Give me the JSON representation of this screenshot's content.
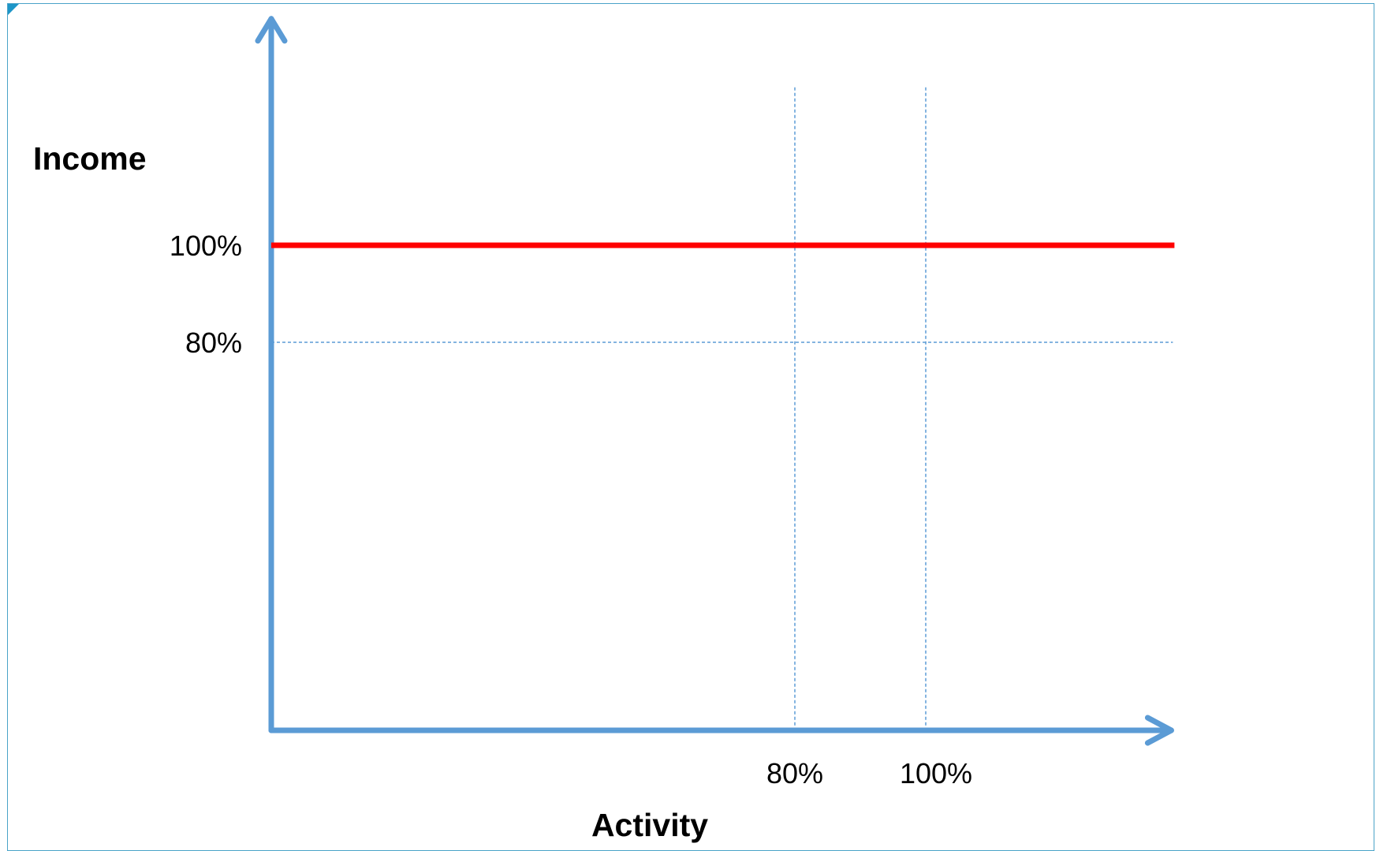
{
  "chart_data": {
    "type": "line",
    "xlabel": "Activity",
    "ylabel": "Income",
    "x_ticks": [
      {
        "label": "80%",
        "value": 80
      },
      {
        "label": "100%",
        "value": 100
      }
    ],
    "y_ticks": [
      {
        "label": "100%",
        "value": 100
      },
      {
        "label": "80%",
        "value": 80
      }
    ],
    "reference_lines": {
      "vertical": [
        80,
        100
      ],
      "horizontal": [
        80
      ],
      "color": "#5b9bd5",
      "style": "dashed"
    },
    "series": [
      {
        "x": [
          0,
          138
        ],
        "y": [
          100,
          100
        ],
        "color": "#ff0000"
      }
    ],
    "xlim": [
      0,
      138
    ],
    "ylim": [
      0,
      148
    ],
    "grid": false,
    "axis_color": "#5b9bd5"
  }
}
